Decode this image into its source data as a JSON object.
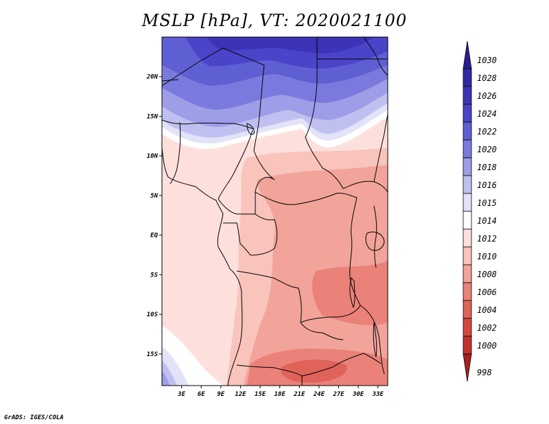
{
  "title": "MSLP [hPa], VT: 2020021100",
  "credit": "GrADS: IGES/COLA",
  "map": {
    "lat_range": [
      -19,
      25
    ],
    "lon_range": [
      0,
      34.5
    ],
    "lat_ticks": [
      {
        "value": 20,
        "label": "20N"
      },
      {
        "value": 15,
        "label": "15N"
      },
      {
        "value": 10,
        "label": "10N"
      },
      {
        "value": 5,
        "label": "5N"
      },
      {
        "value": 0,
        "label": "EQ"
      },
      {
        "value": -5,
        "label": "5S"
      },
      {
        "value": -10,
        "label": "10S"
      },
      {
        "value": -15,
        "label": "15S"
      }
    ],
    "lon_ticks": [
      {
        "value": 3,
        "label": "3E"
      },
      {
        "value": 6,
        "label": "6E"
      },
      {
        "value": 9,
        "label": "9E"
      },
      {
        "value": 12,
        "label": "12E"
      },
      {
        "value": 15,
        "label": "15E"
      },
      {
        "value": 18,
        "label": "18E"
      },
      {
        "value": 21,
        "label": "21E"
      },
      {
        "value": 24,
        "label": "24E"
      },
      {
        "value": 27,
        "label": "27E"
      },
      {
        "value": 30,
        "label": "30E"
      },
      {
        "value": 33,
        "label": "33E"
      }
    ]
  },
  "colorbar": {
    "levels": [
      {
        "label": "1030",
        "color": "#2a1f8f"
      },
      {
        "label": "1028",
        "color": "#3326a3"
      },
      {
        "label": "1026",
        "color": "#3d33b8"
      },
      {
        "label": "1024",
        "color": "#4a44c8"
      },
      {
        "label": "1022",
        "color": "#5f5fd4"
      },
      {
        "label": "1020",
        "color": "#7a7ade"
      },
      {
        "label": "1018",
        "color": "#9d9de8"
      },
      {
        "label": "1016",
        "color": "#c0c0f0"
      },
      {
        "label": "1015",
        "color": "#e2e2f8"
      },
      {
        "label": "1014",
        "color": "#ffffff"
      },
      {
        "label": "1012",
        "color": "#fde0dc"
      },
      {
        "label": "1010",
        "color": "#f8c4bc"
      },
      {
        "label": "1008",
        "color": "#f2a49a"
      },
      {
        "label": "1006",
        "color": "#ea8279"
      },
      {
        "label": "1004",
        "color": "#e0635a"
      },
      {
        "label": "1002",
        "color": "#d44840"
      },
      {
        "label": "1000",
        "color": "#c4302c"
      },
      {
        "label": "998",
        "color": "#a8201f"
      }
    ]
  }
}
